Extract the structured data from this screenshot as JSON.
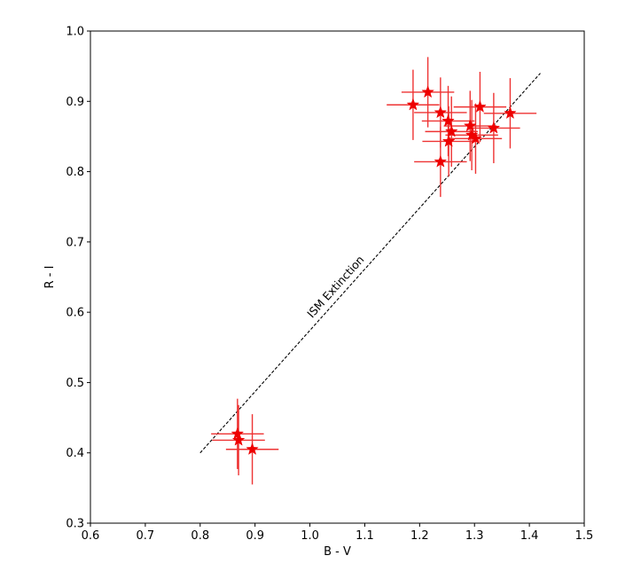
{
  "chart_data": {
    "type": "scatter",
    "title": "",
    "xlabel": "B - V",
    "ylabel": "R - I",
    "xlim": [
      0.6,
      1.5
    ],
    "ylim": [
      0.3,
      1.0
    ],
    "xticks": [
      0.6,
      0.7,
      0.8,
      0.9,
      1.0,
      1.1,
      1.2,
      1.3,
      1.4,
      1.5
    ],
    "yticks": [
      0.3,
      0.4,
      0.5,
      0.6,
      0.7,
      0.8,
      0.9,
      1.0
    ],
    "xtick_labels": [
      "0.6",
      "0.7",
      "0.8",
      "0.9",
      "1.0",
      "1.1",
      "1.2",
      "1.3",
      "1.4",
      "1.5"
    ],
    "ytick_labels": [
      "0.3",
      "0.4",
      "0.5",
      "0.6",
      "0.7",
      "0.8",
      "0.9",
      "1.0"
    ],
    "grid": false,
    "marker": "star",
    "marker_color": "#ee0000",
    "errorbar_color": "#ee3333",
    "points": [
      {
        "x": 0.868,
        "y": 0.427,
        "xerr": 0.048,
        "yerr": 0.05
      },
      {
        "x": 0.87,
        "y": 0.418,
        "xerr": 0.048,
        "yerr": 0.05
      },
      {
        "x": 0.895,
        "y": 0.405,
        "xerr": 0.048,
        "yerr": 0.05
      },
      {
        "x": 1.188,
        "y": 0.895,
        "xerr": 0.048,
        "yerr": 0.05
      },
      {
        "x": 1.215,
        "y": 0.913,
        "xerr": 0.048,
        "yerr": 0.05
      },
      {
        "x": 1.238,
        "y": 0.884,
        "xerr": 0.048,
        "yerr": 0.05
      },
      {
        "x": 1.252,
        "y": 0.872,
        "xerr": 0.048,
        "yerr": 0.05
      },
      {
        "x": 1.258,
        "y": 0.857,
        "xerr": 0.048,
        "yerr": 0.05
      },
      {
        "x": 1.253,
        "y": 0.843,
        "xerr": 0.048,
        "yerr": 0.05
      },
      {
        "x": 1.238,
        "y": 0.814,
        "xerr": 0.048,
        "yerr": 0.05
      },
      {
        "x": 1.292,
        "y": 0.865,
        "xerr": 0.048,
        "yerr": 0.05
      },
      {
        "x": 1.295,
        "y": 0.852,
        "xerr": 0.048,
        "yerr": 0.05
      },
      {
        "x": 1.302,
        "y": 0.847,
        "xerr": 0.048,
        "yerr": 0.05
      },
      {
        "x": 1.31,
        "y": 0.892,
        "xerr": 0.048,
        "yerr": 0.05
      },
      {
        "x": 1.335,
        "y": 0.862,
        "xerr": 0.048,
        "yerr": 0.05
      },
      {
        "x": 1.365,
        "y": 0.883,
        "xerr": 0.048,
        "yerr": 0.05
      }
    ],
    "reference_line": {
      "label": "ISM Extinction",
      "style": "dashed",
      "color": "#000000",
      "x": [
        0.8,
        1.42
      ],
      "y": [
        0.4,
        0.94
      ]
    }
  }
}
